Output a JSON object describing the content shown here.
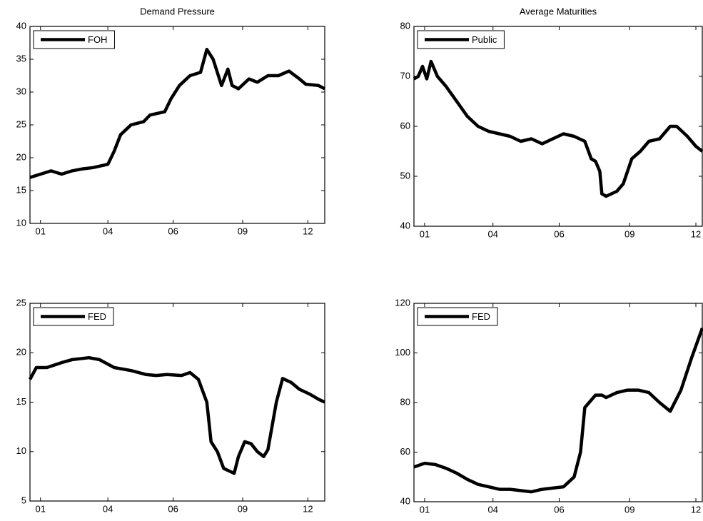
{
  "chart_data": [
    {
      "type": "line",
      "title": "Demand Pressure",
      "legend": "upper left",
      "x": [
        0,
        5,
        10,
        15,
        20,
        25,
        30,
        37,
        40,
        43,
        48,
        54,
        57,
        64,
        67,
        71,
        76,
        81,
        84,
        87,
        91,
        94,
        96,
        99,
        104,
        108,
        113,
        118,
        123,
        128,
        131,
        137,
        140
      ],
      "series": [
        {
          "name": "FOH",
          "color": "#000000",
          "values": [
            17,
            17.5,
            18,
            17.5,
            18,
            18.3,
            18.5,
            19,
            21,
            23.5,
            25,
            25.5,
            26.5,
            27,
            29,
            31,
            32.5,
            33,
            36.5,
            35,
            31,
            33.5,
            31,
            30.5,
            32,
            31.5,
            32.5,
            32.5,
            33.2,
            32,
            31.2,
            31,
            30.5
          ]
        }
      ],
      "xlim": [
        0,
        140
      ],
      "xticks": [
        {
          "value": 5,
          "label": "01"
        },
        {
          "value": 37,
          "label": "04"
        },
        {
          "value": 68,
          "label": "06"
        },
        {
          "value": 101,
          "label": "09"
        },
        {
          "value": 132,
          "label": "12"
        }
      ],
      "ylim": [
        10,
        40
      ],
      "yticks": [
        10,
        15,
        20,
        25,
        30,
        35,
        40
      ]
    },
    {
      "type": "line",
      "title": "Average Maturities",
      "legend": "upper left",
      "x": [
        0,
        2,
        4,
        6,
        8,
        11,
        15,
        20,
        25,
        30,
        35,
        40,
        45,
        50,
        55,
        60,
        65,
        70,
        75,
        80,
        83,
        85,
        87,
        88,
        90,
        95,
        98,
        102,
        106,
        110,
        115,
        120,
        123,
        128,
        132,
        135
      ],
      "series": [
        {
          "name": "Public",
          "color": "#000000",
          "values": [
            69.5,
            70,
            72,
            69.5,
            73,
            70,
            68,
            65,
            62,
            60,
            59,
            58.5,
            58,
            57,
            57.5,
            56.5,
            57.5,
            58.5,
            58,
            57,
            53.5,
            53,
            51,
            46.5,
            46,
            47,
            48.5,
            53.5,
            55,
            57,
            57.5,
            60,
            60,
            58,
            56,
            55
          ]
        }
      ],
      "xlim": [
        0,
        135
      ],
      "xticks": [
        {
          "value": 5,
          "label": "01"
        },
        {
          "value": 37,
          "label": "04"
        },
        {
          "value": 68,
          "label": "06"
        },
        {
          "value": 101,
          "label": "09"
        },
        {
          "value": 132,
          "label": "12"
        }
      ],
      "ylim": [
        40,
        80
      ],
      "yticks": [
        40,
        50,
        60,
        70,
        80
      ]
    },
    {
      "type": "line",
      "legend": "upper left",
      "x": [
        0,
        3,
        8,
        15,
        20,
        28,
        33,
        40,
        48,
        55,
        60,
        65,
        72,
        76,
        80,
        84,
        86,
        89,
        92,
        95,
        97,
        99,
        102,
        105,
        108,
        111,
        113,
        117,
        120,
        124,
        128,
        133,
        137,
        140
      ],
      "series": [
        {
          "name": "FED",
          "color": "#000000",
          "values": [
            17.3,
            18.5,
            18.5,
            19,
            19.3,
            19.5,
            19.3,
            18.5,
            18.2,
            17.8,
            17.7,
            17.8,
            17.7,
            18,
            17.3,
            15,
            11,
            10,
            8.3,
            8,
            7.8,
            9.5,
            11,
            10.8,
            10,
            9.5,
            10.2,
            15,
            17.4,
            17,
            16.3,
            15.8,
            15.3,
            15
          ]
        }
      ],
      "xlim": [
        0,
        140
      ],
      "xticks": [
        {
          "value": 5,
          "label": "01"
        },
        {
          "value": 37,
          "label": "04"
        },
        {
          "value": 68,
          "label": "06"
        },
        {
          "value": 101,
          "label": "09"
        },
        {
          "value": 132,
          "label": "12"
        }
      ],
      "ylim": [
        5,
        25
      ],
      "yticks": [
        5,
        10,
        15,
        20,
        25
      ]
    },
    {
      "type": "line",
      "legend": "upper left",
      "x": [
        0,
        5,
        10,
        15,
        20,
        25,
        30,
        35,
        40,
        45,
        50,
        55,
        60,
        65,
        70,
        75,
        78,
        80,
        85,
        88,
        90,
        95,
        100,
        105,
        110,
        115,
        120,
        125,
        130,
        135
      ],
      "series": [
        {
          "name": "FED",
          "color": "#000000",
          "values": [
            54,
            55.5,
            55,
            53.5,
            51.5,
            49,
            47,
            46,
            45,
            45,
            44.5,
            44,
            45,
            45.5,
            46,
            50,
            60,
            78,
            83,
            83,
            82,
            84,
            85,
            85,
            84,
            80,
            76.5,
            85,
            98,
            110
          ]
        }
      ],
      "xlim": [
        0,
        135
      ],
      "xticks": [
        {
          "value": 5,
          "label": "01"
        },
        {
          "value": 37,
          "label": "04"
        },
        {
          "value": 68,
          "label": "06"
        },
        {
          "value": 101,
          "label": "09"
        },
        {
          "value": 132,
          "label": "12"
        }
      ],
      "ylim": [
        40,
        120
      ],
      "yticks": [
        40,
        60,
        80,
        100,
        120
      ]
    }
  ]
}
